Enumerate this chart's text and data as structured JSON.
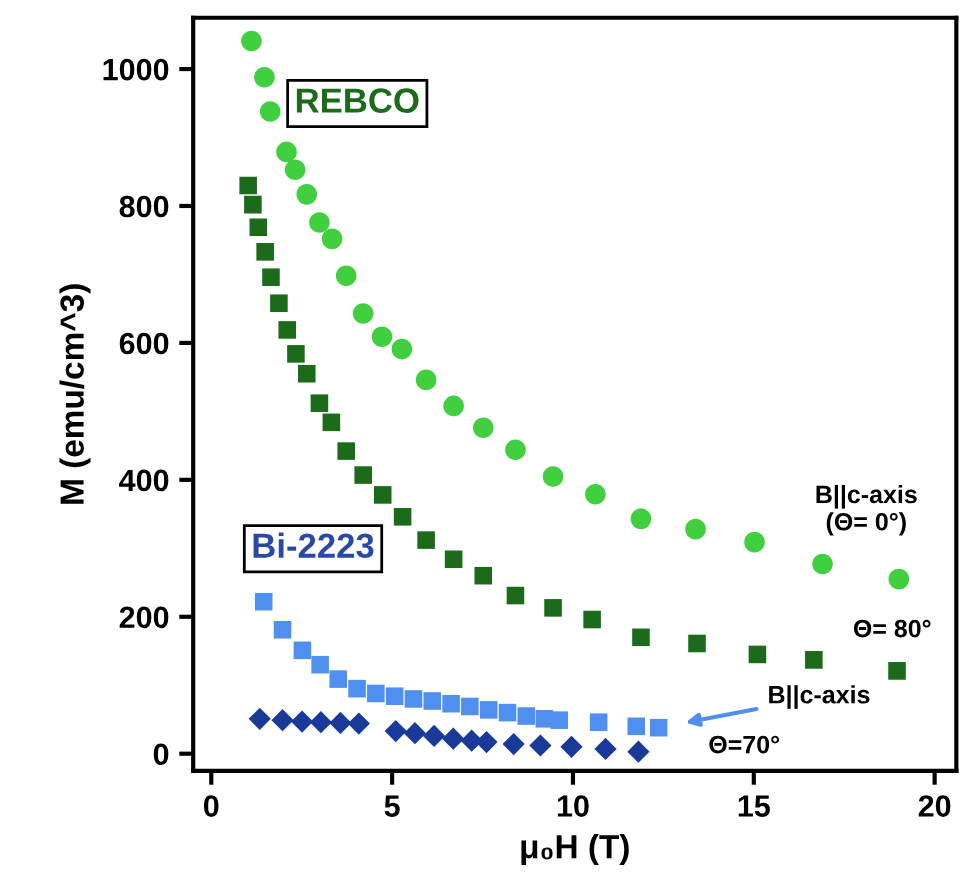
{
  "chart_data": {
    "type": "scatter",
    "xlabel": "μ₀H (T)",
    "ylabel": "M (emu/cm^3)",
    "xlim": [
      -0.5,
      20.6
    ],
    "ylim": [
      -25,
      1075
    ],
    "xticks": [
      0,
      5,
      10,
      15,
      20
    ],
    "yticks": [
      0,
      200,
      400,
      600,
      800,
      1000
    ],
    "grid": false,
    "legend": false,
    "series": [
      {
        "color": "#3fcf3f",
        "marker": "circle",
        "x": [
          1.11,
          1.47,
          1.63,
          2.08,
          2.32,
          2.64,
          2.99,
          3.34,
          3.73,
          4.2,
          4.72,
          5.27,
          5.94,
          6.7,
          7.52,
          8.41,
          9.45,
          10.62,
          11.88,
          13.39,
          15.02,
          16.9,
          19.01
        ],
        "values": [
          1041,
          988,
          938,
          879,
          853,
          817,
          776,
          752,
          698,
          643,
          609,
          591,
          546,
          508,
          476,
          444,
          405,
          379,
          343,
          328,
          309,
          277,
          255
        ]
      },
      {
        "color": "#1b6b1b",
        "marker": "square",
        "x": [
          1.02,
          1.15,
          1.3,
          1.49,
          1.65,
          1.87,
          2.1,
          2.34,
          2.64,
          2.99,
          3.32,
          3.73,
          4.2,
          4.74,
          5.29,
          5.94,
          6.7,
          7.52,
          8.41,
          9.45,
          10.53,
          11.88,
          13.43,
          15.1,
          16.66,
          18.96
        ],
        "values": [
          830,
          802,
          769,
          733,
          696,
          658,
          619,
          584,
          555,
          512,
          484,
          442,
          407,
          378,
          346,
          312,
          284,
          260,
          231,
          213,
          196,
          170,
          161,
          145,
          137,
          121
        ]
      },
      {
        "color": "#4f8ff0",
        "marker": "square",
        "x": [
          1.45,
          1.97,
          2.52,
          3.01,
          3.51,
          4.03,
          4.55,
          5.07,
          5.59,
          6.11,
          6.63,
          7.15,
          7.67,
          8.19,
          8.71,
          9.21,
          9.62,
          10.71,
          11.75,
          12.37
        ],
        "values": [
          222,
          181,
          151,
          130,
          109,
          95,
          88,
          84,
          80,
          77,
          73,
          69,
          64,
          60,
          55,
          51,
          49,
          46,
          40,
          38
        ]
      },
      {
        "color": "#1a3a9a",
        "marker": "diamond",
        "x": [
          1.34,
          1.97,
          2.51,
          3.03,
          3.57,
          4.08,
          5.1,
          5.63,
          6.16,
          6.69,
          7.2,
          7.61,
          8.36,
          9.1,
          9.96,
          10.9,
          11.81
        ],
        "values": [
          51,
          49,
          47,
          46,
          45,
          44,
          33,
          30,
          26,
          22,
          19,
          17,
          14,
          12,
          10,
          7,
          3
        ]
      }
    ],
    "annotations": [
      "REBCO",
      "Bi-2223",
      "B||c-axis\n(Θ= 0°)",
      "Θ= 80°",
      "B||c-axis",
      "Θ=70°"
    ]
  }
}
